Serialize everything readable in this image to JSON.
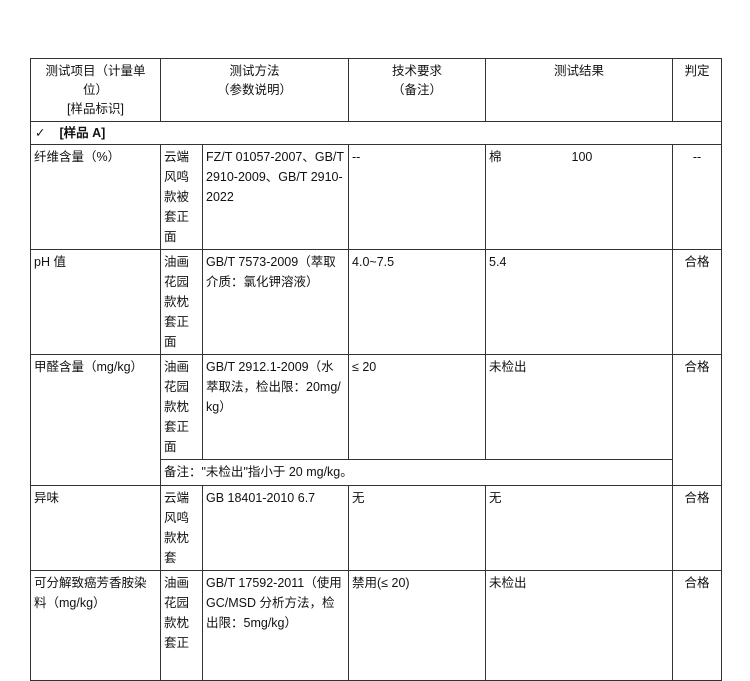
{
  "header": {
    "item": [
      "测试项目（计量单位）",
      "[样品标识]"
    ],
    "method": [
      "测试方法",
      "（参数说明）"
    ],
    "requirement": [
      "技术要求",
      "（备注）"
    ],
    "result": "测试结果",
    "verdict": "判定"
  },
  "sample_label": "[样品 A]",
  "check_icon": "✓",
  "rows": [
    {
      "item": "纤维含量（%）",
      "sample": "云端风鸣款被套正面",
      "method": "FZ/T 01057-2007、GB/T 2910-2009、GB/T 2910-2022",
      "requirement": "--",
      "result_label": "棉",
      "result_value": "100",
      "verdict": "--"
    },
    {
      "item": "pH 值",
      "sample": "油画花园款枕套正面",
      "method": "GB/T 7573-2009（萃取介质：氯化钾溶液）",
      "requirement": "4.0~7.5",
      "result": "5.4",
      "verdict": "合格"
    },
    {
      "item": "甲醛含量（mg/kg）",
      "sample": "油画花园款枕套正面",
      "method": "GB/T 2912.1-2009（水萃取法，检出限：20mg/kg）",
      "requirement": "≤ 20",
      "result": "未检出",
      "verdict": "合格",
      "note": "备注：\"未检出\"指小于 20 mg/kg。"
    },
    {
      "item": "异味",
      "sample": "云端风鸣款枕套",
      "method": "GB 18401-2010 6.7",
      "requirement": "无",
      "result": "无",
      "verdict": "合格"
    },
    {
      "item": "可分解致癌芳香胺染料（mg/kg）",
      "sample": "油画花园款枕套正",
      "method": "GB/T 17592-2011（使用 GC/MSD 分析方法，检出限：5mg/kg）",
      "requirement": "禁用(≤ 20)",
      "result": "未检出",
      "verdict": "合格"
    }
  ]
}
